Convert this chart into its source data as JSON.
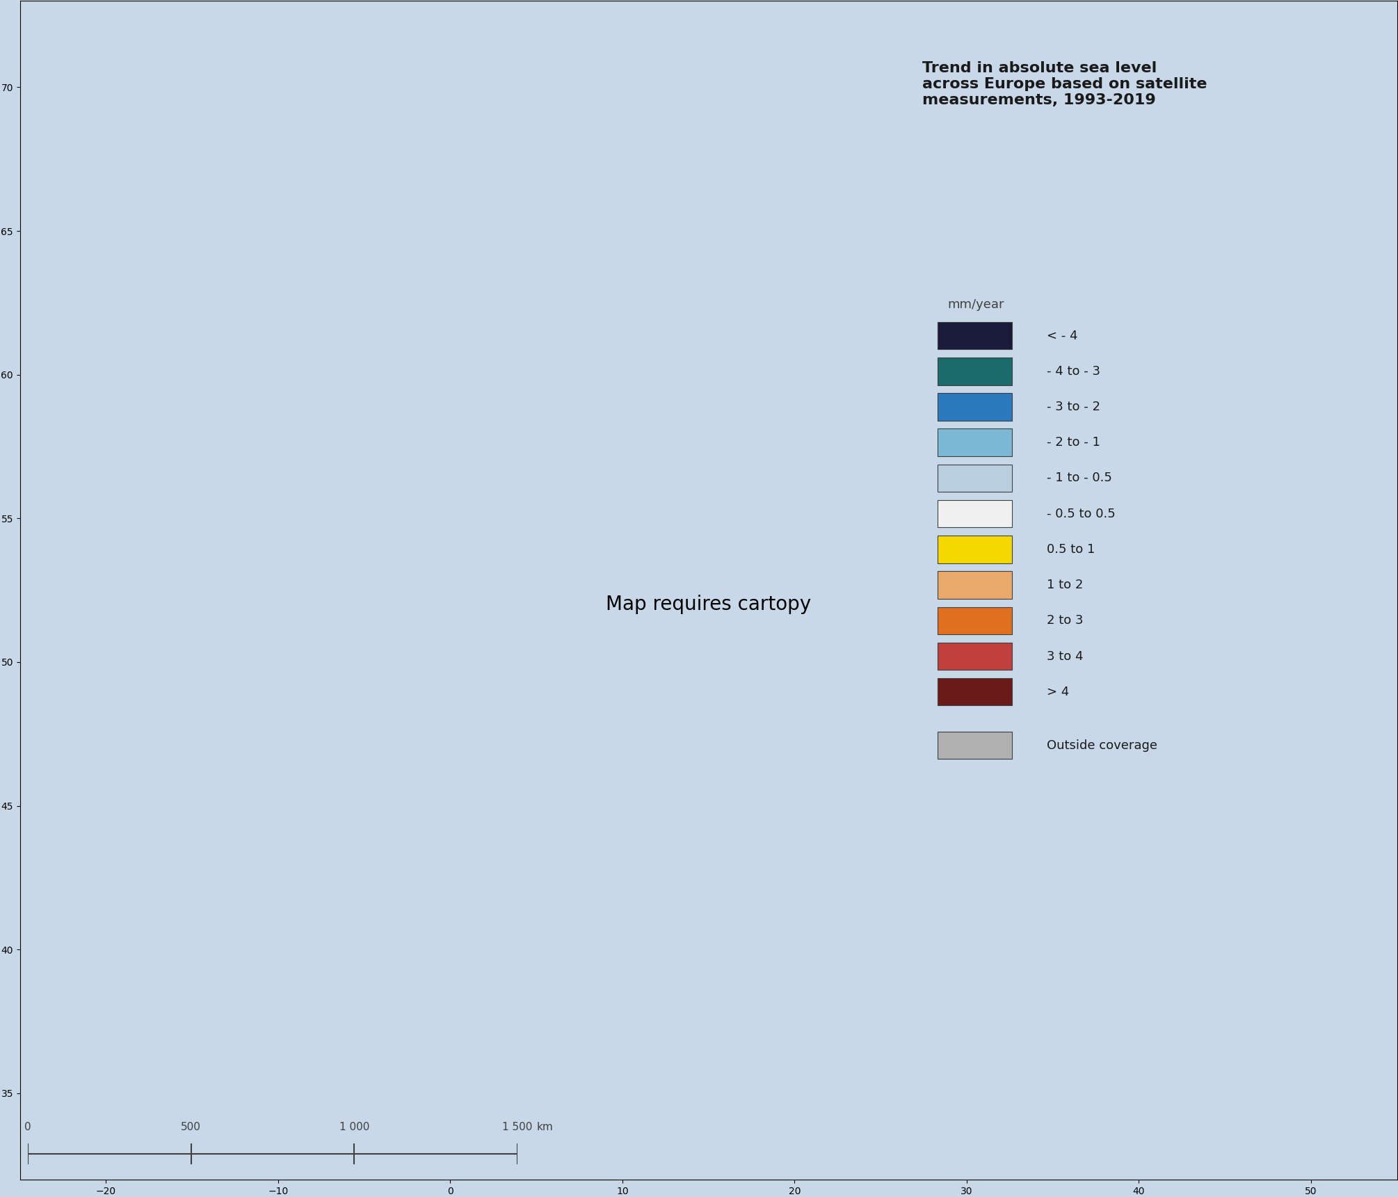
{
  "title": "Trend in absolute sea level\nacross Europe based on satellite\nmeasurements, 1993-2019",
  "legend_unit": "mm/year",
  "legend_entries": [
    {
      "label": "< - 4",
      "color": "#1a1a3a"
    },
    {
      "label": "- 4 to - 3",
      "color": "#1a6b6b"
    },
    {
      "label": "- 3 to - 2",
      "color": "#2b7abf"
    },
    {
      "label": "- 2 to - 1",
      "color": "#7bb8d4"
    },
    {
      "label": "- 1 to - 0.5",
      "color": "#b8cfe0"
    },
    {
      "label": "- 0.5 to 0.5",
      "color": "#f0f0f0"
    },
    {
      "label": "0.5 to 1",
      "color": "#f5d800"
    },
    {
      "label": "1 to 2",
      "color": "#e8a96a"
    },
    {
      "label": "2 to 3",
      "color": "#e07020"
    },
    {
      "label": "3 to 4",
      "color": "#c04040"
    },
    {
      "label": "> 4",
      "color": "#6b1a1a"
    }
  ],
  "outside_coverage_color": "#b0b0b0",
  "outside_coverage_label": "Outside coverage",
  "background_color": "#c8d8e8",
  "legend_box_color": "#e8e8e8",
  "scale_bar_ticks": [
    0,
    500,
    1000,
    1500
  ],
  "scale_bar_unit": "km",
  "title_fontsize": 16,
  "legend_fontsize": 13,
  "figsize": [
    20.1,
    17.21
  ],
  "dpi": 100
}
